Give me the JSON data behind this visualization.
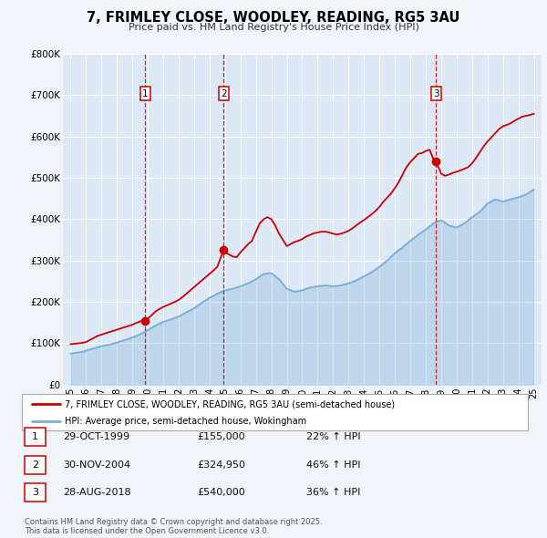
{
  "title": "7, FRIMLEY CLOSE, WOODLEY, READING, RG5 3AU",
  "subtitle": "Price paid vs. HM Land Registry's House Price Index (HPI)",
  "background_color": "#f0f4f8",
  "plot_bg_color": "#dce8f5",
  "grid_color": "#ffffff",
  "ylim": [
    0,
    800000
  ],
  "yticks": [
    0,
    100000,
    200000,
    300000,
    400000,
    500000,
    600000,
    700000,
    800000
  ],
  "ytick_labels": [
    "£0",
    "£100K",
    "£200K",
    "£300K",
    "£400K",
    "£500K",
    "£600K",
    "£700K",
    "£800K"
  ],
  "xlim_start": 1994.5,
  "xlim_end": 2025.5,
  "sale_color": "#cc0000",
  "hpi_color": "#7aafd4",
  "sale_dates": [
    1999.83,
    2004.92,
    2018.66
  ],
  "sale_prices": [
    155000,
    324950,
    540000
  ],
  "vline_color": "#cc0000",
  "marker_labels": [
    "1",
    "2",
    "3"
  ],
  "transaction_labels": [
    {
      "num": "1",
      "date": "29-OCT-1999",
      "price": "£155,000",
      "hpi": "22% ↑ HPI"
    },
    {
      "num": "2",
      "date": "30-NOV-2004",
      "price": "£324,950",
      "hpi": "46% ↑ HPI"
    },
    {
      "num": "3",
      "date": "28-AUG-2018",
      "price": "£540,000",
      "hpi": "36% ↑ HPI"
    }
  ],
  "legend_label_sale": "7, FRIMLEY CLOSE, WOODLEY, READING, RG5 3AU (semi-detached house)",
  "legend_label_hpi": "HPI: Average price, semi-detached house, Wokingham",
  "footer": "Contains HM Land Registry data © Crown copyright and database right 2025.\nThis data is licensed under the Open Government Licence v3.0.",
  "hpi_x": [
    1995.0,
    1995.08,
    1995.17,
    1995.25,
    1995.33,
    1995.42,
    1995.5,
    1995.58,
    1995.67,
    1995.75,
    1995.83,
    1995.92,
    1996.0,
    1996.5,
    1997.0,
    1997.5,
    1998.0,
    1998.5,
    1999.0,
    1999.5,
    2000.0,
    2000.5,
    2001.0,
    2001.5,
    2002.0,
    2002.5,
    2003.0,
    2003.5,
    2004.0,
    2004.5,
    2005.0,
    2005.5,
    2006.0,
    2006.5,
    2007.0,
    2007.5,
    2008.0,
    2008.5,
    2009.0,
    2009.5,
    2010.0,
    2010.5,
    2011.0,
    2011.5,
    2012.0,
    2012.5,
    2013.0,
    2013.5,
    2014.0,
    2014.5,
    2015.0,
    2015.5,
    2016.0,
    2016.5,
    2017.0,
    2017.5,
    2018.0,
    2018.5,
    2019.0,
    2019.5,
    2020.0,
    2020.5,
    2021.0,
    2021.5,
    2022.0,
    2022.5,
    2023.0,
    2023.5,
    2024.0,
    2024.5,
    2025.0
  ],
  "hpi_y": [
    75000,
    75500,
    76000,
    76500,
    77000,
    77500,
    78000,
    78500,
    79000,
    79500,
    80000,
    80500,
    83000,
    88000,
    93000,
    97000,
    102000,
    108000,
    114000,
    122000,
    132000,
    143000,
    152000,
    158000,
    165000,
    175000,
    185000,
    198000,
    210000,
    220000,
    228000,
    232000,
    238000,
    245000,
    255000,
    268000,
    270000,
    255000,
    232000,
    225000,
    228000,
    235000,
    238000,
    240000,
    238000,
    240000,
    245000,
    252000,
    262000,
    272000,
    285000,
    300000,
    318000,
    332000,
    348000,
    362000,
    375000,
    390000,
    398000,
    385000,
    380000,
    390000,
    405000,
    418000,
    438000,
    448000,
    443000,
    448000,
    453000,
    460000,
    472000
  ],
  "sale_x": [
    1995.0,
    1995.25,
    1995.5,
    1995.75,
    1996.0,
    1996.25,
    1996.5,
    1996.75,
    1997.0,
    1997.25,
    1997.5,
    1997.75,
    1998.0,
    1998.25,
    1998.5,
    1998.75,
    1999.0,
    1999.25,
    1999.5,
    1999.75,
    1999.83,
    2000.0,
    2000.25,
    2000.5,
    2000.75,
    2001.0,
    2001.25,
    2001.5,
    2001.75,
    2002.0,
    2002.25,
    2002.5,
    2002.75,
    2003.0,
    2003.25,
    2003.5,
    2003.75,
    2004.0,
    2004.25,
    2004.5,
    2004.75,
    2004.92,
    2005.0,
    2005.25,
    2005.5,
    2005.75,
    2006.0,
    2006.25,
    2006.5,
    2006.75,
    2007.0,
    2007.25,
    2007.5,
    2007.75,
    2008.0,
    2008.25,
    2008.5,
    2008.75,
    2009.0,
    2009.25,
    2009.5,
    2009.75,
    2010.0,
    2010.25,
    2010.5,
    2010.75,
    2011.0,
    2011.25,
    2011.5,
    2011.75,
    2012.0,
    2012.25,
    2012.5,
    2012.75,
    2013.0,
    2013.25,
    2013.5,
    2013.75,
    2014.0,
    2014.25,
    2014.5,
    2014.75,
    2015.0,
    2015.25,
    2015.5,
    2015.75,
    2016.0,
    2016.25,
    2016.5,
    2016.75,
    2017.0,
    2017.25,
    2017.5,
    2017.75,
    2018.0,
    2018.25,
    2018.5,
    2018.66,
    2019.0,
    2019.25,
    2019.5,
    2019.75,
    2020.0,
    2020.25,
    2020.5,
    2020.75,
    2021.0,
    2021.25,
    2021.5,
    2021.75,
    2022.0,
    2022.25,
    2022.5,
    2022.75,
    2023.0,
    2023.25,
    2023.5,
    2023.75,
    2024.0,
    2024.25,
    2024.5,
    2024.75,
    2025.0
  ],
  "sale_y": [
    98000,
    99000,
    100000,
    101000,
    103000,
    108000,
    113000,
    118000,
    121000,
    124000,
    127000,
    130000,
    133000,
    136000,
    139000,
    142000,
    145000,
    149000,
    153000,
    156000,
    155000,
    160000,
    168000,
    177000,
    183000,
    188000,
    192000,
    196000,
    200000,
    205000,
    212000,
    220000,
    228000,
    236000,
    244000,
    252000,
    260000,
    268000,
    276000,
    285000,
    310000,
    324950,
    320000,
    315000,
    310000,
    308000,
    320000,
    330000,
    340000,
    348000,
    370000,
    390000,
    400000,
    405000,
    400000,
    385000,
    365000,
    350000,
    335000,
    340000,
    345000,
    348000,
    352000,
    358000,
    362000,
    366000,
    368000,
    370000,
    370000,
    368000,
    365000,
    363000,
    365000,
    368000,
    372000,
    378000,
    385000,
    392000,
    398000,
    405000,
    412000,
    420000,
    430000,
    442000,
    452000,
    462000,
    475000,
    490000,
    508000,
    526000,
    538000,
    548000,
    558000,
    560000,
    565000,
    568000,
    545000,
    540000,
    510000,
    505000,
    508000,
    512000,
    515000,
    518000,
    522000,
    526000,
    535000,
    548000,
    562000,
    576000,
    588000,
    598000,
    608000,
    618000,
    625000,
    628000,
    632000,
    638000,
    643000,
    648000,
    650000,
    652000,
    655000
  ]
}
